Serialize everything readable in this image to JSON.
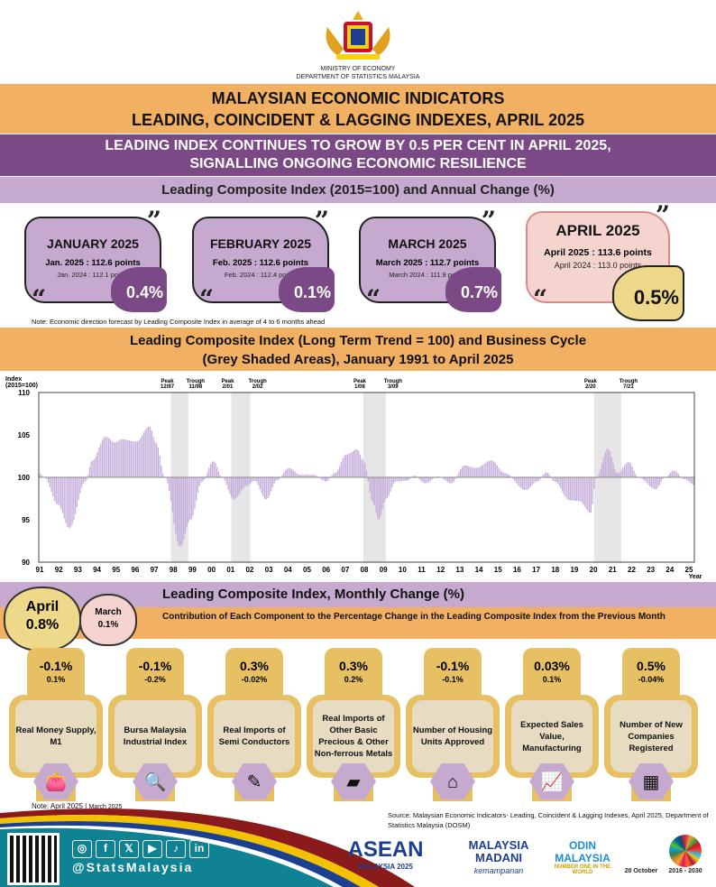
{
  "header": {
    "ministry": "MINISTRY OF ECONOMY",
    "department": "DEPARTMENT OF STATISTICS MALAYSIA"
  },
  "title": {
    "line1": "MALAYSIAN ECONOMIC INDICATORS",
    "line2": "LEADING, COINCIDENT & LAGGING INDEXES, APRIL 2025"
  },
  "headline": {
    "line1": "LEADING INDEX CONTINUES TO GROW BY 0.5 PER CENT IN APRIL 2025,",
    "line2": "SIGNALLING ONGOING ECONOMIC RESILIENCE"
  },
  "subtitle": "Leading Composite Index (2015=100) and Annual Change (%)",
  "cards": [
    {
      "month": "JANUARY 2025",
      "current": "Jan. 2025 : 112.6 points",
      "previous": "Jan. 2024 : 112.1 points",
      "change": "0.4%"
    },
    {
      "month": "FEBRUARY 2025",
      "current": "Feb. 2025 : 112.6 points",
      "previous": "Feb. 2024 : 112.4 points",
      "change": "0.1%"
    },
    {
      "month": "MARCH 2025",
      "current": "March 2025 : 112.7 points",
      "previous": "March 2024 : 111.9 points",
      "change": "0.7%"
    },
    {
      "month": "APRIL 2025",
      "current": "April 2025 : 113.6 points",
      "previous": "April 2024 : 113.0 points",
      "change": "0.5%"
    }
  ],
  "note_forecast": "Note: Economic direction forecast by Leading Composite Index in average of 4 to 6 months ahead",
  "chart_title": {
    "line1": "Leading Composite Index (Long Term Trend = 100) and Business Cycle",
    "line2": "(Grey Shaded Areas), January 1991 to April 2025"
  },
  "chart_data": {
    "type": "bar",
    "ylabel": "Index (2015=100)",
    "xlabel": "Year",
    "ylim": [
      90,
      110
    ],
    "yticks": [
      90,
      95,
      100,
      105,
      110
    ],
    "xlim": [
      1991,
      2025.33
    ],
    "xtick_labels": [
      "91",
      "92",
      "93",
      "94",
      "95",
      "96",
      "97",
      "98",
      "99",
      "00",
      "01",
      "02",
      "03",
      "04",
      "05",
      "06",
      "07",
      "08",
      "09",
      "10",
      "11",
      "12",
      "13",
      "14",
      "15",
      "16",
      "17",
      "18",
      "19",
      "20",
      "21",
      "22",
      "23",
      "24",
      "25"
    ],
    "baseline": 100,
    "series_color": "#c5aedb",
    "shaded_color": "#e6e6e6",
    "recessions": [
      {
        "peak": "Peak 12/97",
        "trough": "Trough 11/98",
        "start": 1997.92,
        "end": 1998.83
      },
      {
        "peak": "Peak 2/01",
        "trough": "Trough 2/02",
        "start": 2001.08,
        "end": 2002.08
      },
      {
        "peak": "Peak 1/08",
        "trough": "Trough 3/09",
        "start": 2008.0,
        "end": 2009.17
      },
      {
        "peak": "Peak 2/20",
        "trough": "Trough 7/21",
        "start": 2020.08,
        "end": 2021.5
      }
    ],
    "points": [
      [
        1991.0,
        100.5
      ],
      [
        1991.3,
        100
      ],
      [
        1992.0,
        96.8
      ],
      [
        1992.6,
        94
      ],
      [
        1993.45,
        99.5
      ],
      [
        1993.8,
        102
      ],
      [
        1994.5,
        104.8
      ],
      [
        1995.0,
        104.1
      ],
      [
        1995.35,
        104.5
      ],
      [
        1996.1,
        104.2
      ],
      [
        1996.8,
        106
      ],
      [
        1997.15,
        104
      ],
      [
        1997.6,
        100
      ],
      [
        1998.4,
        91.8
      ],
      [
        1998.95,
        95
      ],
      [
        1999.55,
        99.5
      ],
      [
        2000.15,
        101.9
      ],
      [
        2000.6,
        100
      ],
      [
        2001.2,
        97.4
      ],
      [
        2001.9,
        99
      ],
      [
        2002.3,
        99.6
      ],
      [
        2002.9,
        97.4
      ],
      [
        2003.5,
        99.7
      ],
      [
        2004.1,
        101.1
      ],
      [
        2004.7,
        100.3
      ],
      [
        2005.4,
        100.3
      ],
      [
        2006.05,
        99.5
      ],
      [
        2006.5,
        100.5
      ],
      [
        2007.1,
        102.7
      ],
      [
        2007.67,
        103.3
      ],
      [
        2008.0,
        102
      ],
      [
        2008.5,
        97
      ],
      [
        2008.8,
        95
      ],
      [
        2009.2,
        97.5
      ],
      [
        2009.7,
        99.5
      ],
      [
        2010.3,
        99.6
      ],
      [
        2010.65,
        100.2
      ],
      [
        2011.25,
        99.3
      ],
      [
        2011.9,
        100.1
      ],
      [
        2012.6,
        99.3
      ],
      [
        2013.3,
        101.4
      ],
      [
        2013.9,
        101.1
      ],
      [
        2014.7,
        102
      ],
      [
        2015.4,
        100.5
      ],
      [
        2016.5,
        98.5
      ],
      [
        2017.1,
        99.5
      ],
      [
        2017.6,
        100.6
      ],
      [
        2018.0,
        99.5
      ],
      [
        2018.8,
        97.3
      ],
      [
        2019.3,
        97.2
      ],
      [
        2019.9,
        95.8
      ],
      [
        2020.2,
        100
      ],
      [
        2020.8,
        103.4
      ],
      [
        2021.3,
        100.5
      ],
      [
        2021.9,
        101.8
      ],
      [
        2022.4,
        100
      ],
      [
        2023.3,
        98.6
      ],
      [
        2023.8,
        100
      ],
      [
        2024.25,
        100.8
      ],
      [
        2024.8,
        99.8
      ],
      [
        2025.33,
        99.1
      ]
    ]
  },
  "monthly": {
    "title": "Leading Composite Index, Monthly Change (%)",
    "subtitle": "Contribution of Each Component to the Percentage Change in the Leading Composite Index from the Previous Month",
    "april_label": "April",
    "april_value": "0.8%",
    "march_label": "March",
    "march_value": "0.1%"
  },
  "components": [
    {
      "april": "-0.1%",
      "march": "0.1%",
      "name": "Real Money Supply, M1",
      "icon": "wallet-icon",
      "glyph": "👛"
    },
    {
      "april": "-0.1%",
      "march": "-0.2%",
      "name": "Bursa Malaysia Industrial Index",
      "icon": "magnifier-chart-icon",
      "glyph": "🔍"
    },
    {
      "april": "0.3%",
      "march": "-0.02%",
      "name": "Real Imports of Semi Conductors",
      "icon": "chip-icon",
      "glyph": "✎"
    },
    {
      "april": "0.3%",
      "march": "0.2%",
      "name": "Real Imports of Other Basic Precious & Other Non-ferrous Metals",
      "icon": "metal-bar-icon",
      "glyph": "▰"
    },
    {
      "april": "-0.1%",
      "march": "-0.1%",
      "name": "Number of Housing Units Approved",
      "icon": "house-icon",
      "glyph": "⌂"
    },
    {
      "april": "0.03%",
      "march": "0.1%",
      "name": "Expected Sales Value, Manufacturing",
      "icon": "presentation-icon",
      "glyph": "📈"
    },
    {
      "april": "0.5%",
      "march": "-0.04%",
      "name": "Number of New Companies Registered",
      "icon": "buildings-icon",
      "glyph": "▦"
    }
  ],
  "note_months": {
    "april": "Note: April 2025",
    "march": "March 2025"
  },
  "source": "Source: Malaysian Economic Indicators- Leading, Coincident & Lagging Indexes, April 2025, Department of Statistics Malaysia (DOSM)",
  "footer": {
    "handle": "@StatsMalaysia",
    "social": [
      "◎",
      "f",
      "𝕏",
      "▶",
      "♪",
      "in"
    ],
    "logos": {
      "asean": "ASEAN",
      "asean_sub": "MALAYSIA 2025",
      "madani": "MALAYSIA MADANI",
      "madani_sub": "kemampanan",
      "odin": "ODIN MALAYSIA",
      "odin_sub": "NUMBER ONE IN THE WORLD",
      "statday": "20 October",
      "sdg": "2016 - 2030"
    }
  }
}
